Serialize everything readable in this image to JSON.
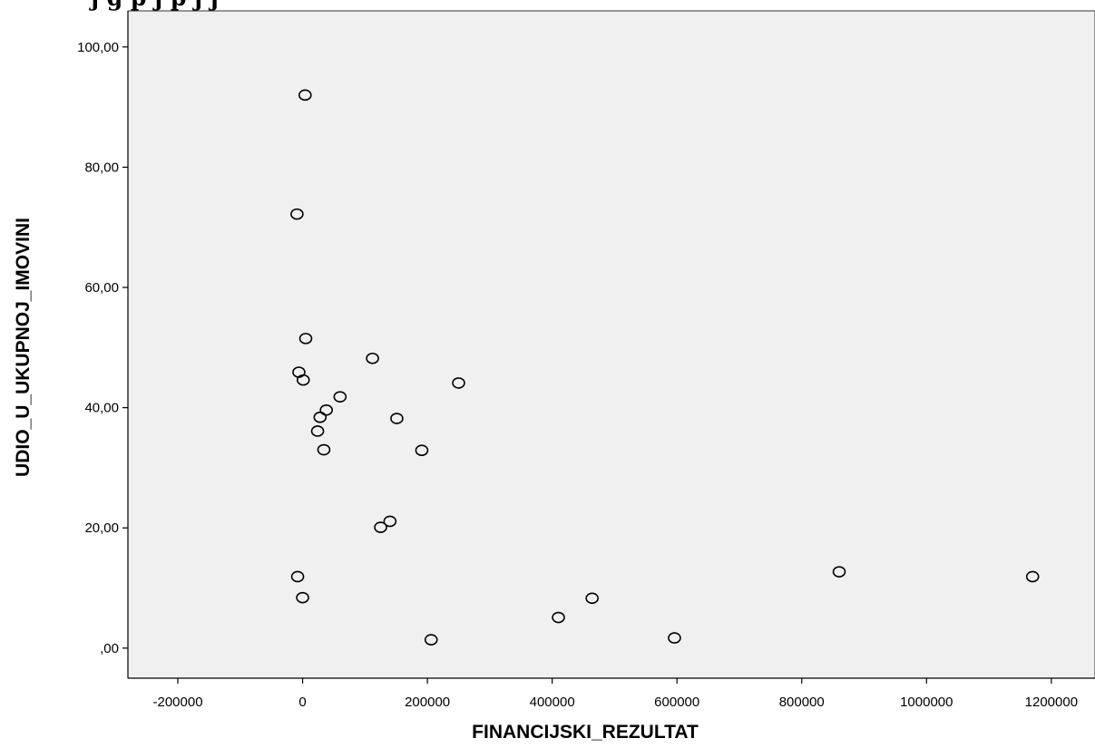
{
  "chart_data": {
    "type": "scatter",
    "title": "j g      p  j     p      j                          j",
    "xlabel": "FINANCIJSKI_REZULTAT",
    "ylabel": "UDIO_U_UKUPNOJ_IMOVINI",
    "xlim": [
      -280000,
      1270000
    ],
    "ylim": [
      -5,
      106
    ],
    "x_ticks": [
      {
        "value": -200000,
        "label": "-200000"
      },
      {
        "value": 0,
        "label": "0"
      },
      {
        "value": 200000,
        "label": "200000"
      },
      {
        "value": 400000,
        "label": "400000"
      },
      {
        "value": 600000,
        "label": "600000"
      },
      {
        "value": 800000,
        "label": "800000"
      },
      {
        "value": 1000000,
        "label": "1000000"
      },
      {
        "value": 1200000,
        "label": "1200000"
      }
    ],
    "y_ticks": [
      {
        "value": 0,
        "label": ",00"
      },
      {
        "value": 20,
        "label": "20,00"
      },
      {
        "value": 40,
        "label": "40,00"
      },
      {
        "value": 60,
        "label": "60,00"
      },
      {
        "value": 80,
        "label": "80,00"
      },
      {
        "value": 100,
        "label": "100,00"
      }
    ],
    "grid": false,
    "legend": "none",
    "colors": {
      "plot_background": "#f0f0f0",
      "marker": "#000000",
      "page_background": "#ffffff"
    },
    "points": [
      {
        "x": 4000,
        "y": 92.0
      },
      {
        "x": -9000,
        "y": 72.2
      },
      {
        "x": 5000,
        "y": 51.5
      },
      {
        "x": 112000,
        "y": 48.2
      },
      {
        "x": -6000,
        "y": 45.9
      },
      {
        "x": 1000,
        "y": 44.6
      },
      {
        "x": 250000,
        "y": 44.1
      },
      {
        "x": 60000,
        "y": 41.8
      },
      {
        "x": 38000,
        "y": 39.6
      },
      {
        "x": 28000,
        "y": 38.4
      },
      {
        "x": 151000,
        "y": 38.2
      },
      {
        "x": 24000,
        "y": 36.1
      },
      {
        "x": 34000,
        "y": 33.0
      },
      {
        "x": 191000,
        "y": 32.9
      },
      {
        "x": 140000,
        "y": 21.1
      },
      {
        "x": 125000,
        "y": 20.1
      },
      {
        "x": 860000,
        "y": 12.7
      },
      {
        "x": -8000,
        "y": 11.9
      },
      {
        "x": 1170000,
        "y": 11.9
      },
      {
        "x": 0,
        "y": 8.4
      },
      {
        "x": 464000,
        "y": 8.3
      },
      {
        "x": 410000,
        "y": 5.1
      },
      {
        "x": 206000,
        "y": 1.4
      },
      {
        "x": 596000,
        "y": 1.7
      }
    ]
  }
}
